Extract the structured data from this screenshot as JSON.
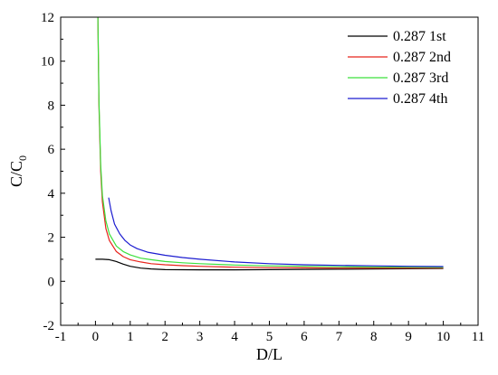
{
  "chart_data": {
    "type": "line",
    "title": "",
    "xlabel": "D/L",
    "ylabel": "C/C",
    "ylabel_sub": "0",
    "xlim": [
      -1,
      11
    ],
    "ylim": [
      -2,
      12
    ],
    "x_ticks": [
      -1,
      0,
      1,
      2,
      3,
      4,
      5,
      6,
      7,
      8,
      9,
      10,
      11
    ],
    "y_ticks": [
      -2,
      0,
      2,
      4,
      6,
      8,
      10,
      12
    ],
    "x_tick_labels": [
      "-1",
      "0",
      "1",
      "2",
      "3",
      "4",
      "5",
      "6",
      "7",
      "8",
      "9",
      "10",
      "11"
    ],
    "y_tick_labels": [
      "-2",
      "0",
      "2",
      "4",
      "6",
      "8",
      "10",
      "12"
    ],
    "grid": false,
    "legend_position": "top-right",
    "series": [
      {
        "name": "0.287 1st",
        "color": "#000000",
        "x": [
          0,
          0.2,
          0.4,
          0.6,
          0.8,
          1.0,
          1.3,
          1.6,
          2.0,
          3.0,
          4.0,
          5.0,
          6.0,
          7.0,
          8.0,
          9.0,
          10.0
        ],
        "y": [
          1.0,
          1.0,
          0.98,
          0.9,
          0.78,
          0.68,
          0.6,
          0.56,
          0.53,
          0.52,
          0.52,
          0.53,
          0.54,
          0.55,
          0.56,
          0.57,
          0.58
        ]
      },
      {
        "name": "0.287 2nd",
        "color": "#e8241c",
        "x": [
          0.07,
          0.1,
          0.15,
          0.2,
          0.3,
          0.4,
          0.6,
          0.8,
          1.0,
          1.3,
          1.6,
          2.0,
          2.5,
          3.0,
          4.0,
          5.0,
          6.0,
          7.0,
          8.0,
          9.0,
          10.0
        ],
        "y": [
          12.0,
          8.0,
          5.0,
          3.6,
          2.4,
          1.85,
          1.35,
          1.12,
          0.98,
          0.88,
          0.8,
          0.75,
          0.71,
          0.68,
          0.64,
          0.62,
          0.61,
          0.6,
          0.6,
          0.6,
          0.6
        ]
      },
      {
        "name": "0.287 3rd",
        "color": "#3ce03c",
        "x": [
          0.07,
          0.1,
          0.15,
          0.2,
          0.3,
          0.4,
          0.6,
          0.8,
          1.0,
          1.3,
          1.6,
          2.0,
          2.5,
          3.0,
          4.0,
          5.0,
          6.0,
          7.0,
          8.0,
          9.0,
          10.0
        ],
        "y": [
          12.0,
          8.2,
          5.3,
          3.9,
          2.75,
          2.15,
          1.6,
          1.35,
          1.2,
          1.05,
          0.98,
          0.9,
          0.84,
          0.8,
          0.74,
          0.7,
          0.68,
          0.66,
          0.65,
          0.64,
          0.63
        ]
      },
      {
        "name": "0.287 4th",
        "color": "#1c1cd0",
        "x": [
          0.38,
          0.45,
          0.55,
          0.7,
          0.85,
          1.0,
          1.2,
          1.5,
          2.0,
          2.5,
          3.0,
          4.0,
          5.0,
          6.0,
          7.0,
          8.0,
          9.0,
          10.0
        ],
        "y": [
          3.8,
          3.2,
          2.6,
          2.15,
          1.85,
          1.65,
          1.48,
          1.32,
          1.18,
          1.08,
          1.0,
          0.88,
          0.8,
          0.75,
          0.72,
          0.7,
          0.68,
          0.67
        ]
      }
    ]
  }
}
